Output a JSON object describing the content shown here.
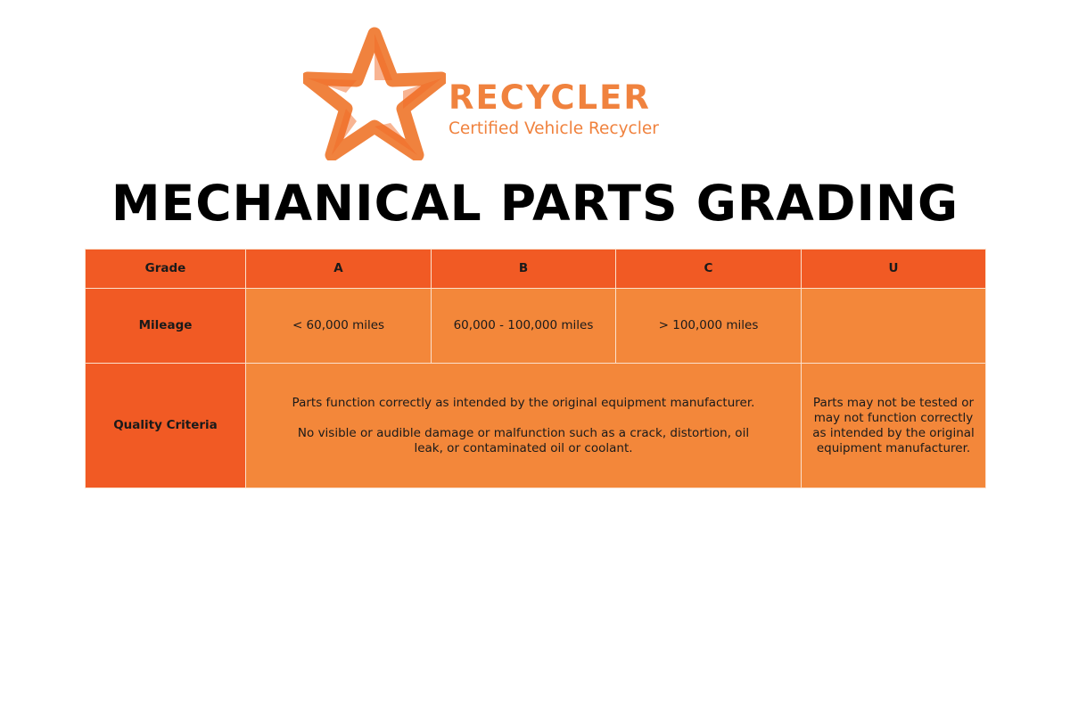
{
  "logo": {
    "brand": "RECYCLER",
    "tagline": "Certified Vehicle Recycler",
    "color": "#F0823E"
  },
  "title": "MECHANICAL PARTS GRADING",
  "colors": {
    "header": "#F15A24",
    "cell": "#F3873A"
  },
  "table": {
    "header": [
      "Grade",
      "A",
      "B",
      "C",
      "U"
    ],
    "mileage": {
      "label": "Mileage",
      "values": [
        "< 60,000 miles",
        "60,000 - 100,000 miles",
        "> 100,000 miles",
        ""
      ]
    },
    "quality": {
      "label": "Quality Criteria",
      "abc": [
        "Parts function correctly as intended by the original equipment manufacturer.",
        "No visible or audible damage or malfunction such as a crack, distortion, oil leak, or contaminated oil or coolant."
      ],
      "u": "Parts may not be tested or may not function correctly as intended by the original equipment manufacturer."
    }
  }
}
